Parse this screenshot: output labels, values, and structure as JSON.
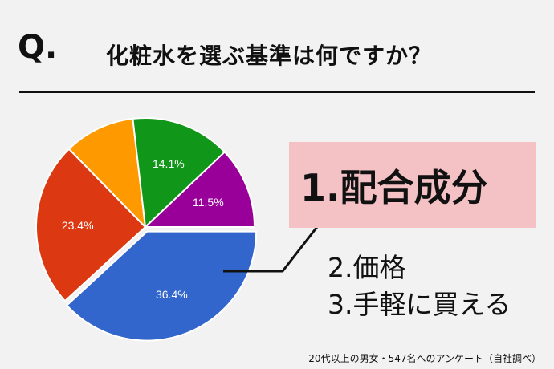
{
  "question": {
    "mark": "Q.",
    "text": "化粧水を選ぶ基準は何ですか？"
  },
  "answers": {
    "first": "1.配合成分",
    "second": "2.価格",
    "third": "3.手軽に買える"
  },
  "source": "20代以上の男女・547名へのアンケート（自社調べ）",
  "chart_data": {
    "type": "pie",
    "title": "",
    "slices": [
      {
        "value": 36.4,
        "label": "36.4%",
        "color": "#3366cc",
        "exploded": true
      },
      {
        "value": 23.4,
        "label": "23.4%",
        "color": "#dc3912",
        "exploded": false
      },
      {
        "value": 10.0,
        "label": "",
        "color": "#ff9900",
        "exploded": false
      },
      {
        "value": 14.1,
        "label": "14.1%",
        "color": "#109618",
        "exploded": false
      },
      {
        "value": 11.5,
        "label": "11.5%",
        "color": "#990099",
        "exploded": false
      }
    ],
    "start_angle_deg": 0,
    "direction": "clockwise",
    "legend": "none"
  },
  "colors": {
    "highlight_box": "#f4c2c4",
    "rule": "#111111",
    "background": "#f2f2f2"
  }
}
